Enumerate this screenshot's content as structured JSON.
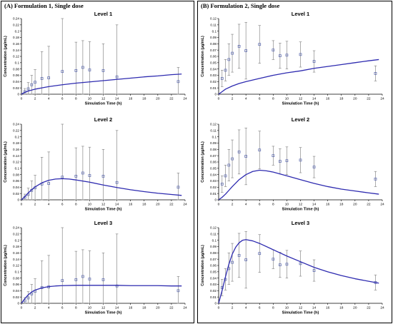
{
  "figure": {
    "panels": [
      {
        "label": "(A) Formulation 1, Single dose"
      },
      {
        "label": "(B) Formulation 2, Single dose"
      }
    ],
    "colors": {
      "curve": "#2e2bb0",
      "marker": "#5a68b0",
      "errorbar": "#8a8a8a",
      "axis": "#000000"
    }
  },
  "chart_data": [
    {
      "type": "scatter",
      "panel": "A",
      "title": "Level 1",
      "xlabel": "Simulation Time (h)",
      "ylabel": "Concentration (µg/mL)",
      "xlim": [
        0,
        24
      ],
      "ylim": [
        0,
        0.24
      ],
      "xticks": [
        "0",
        "2",
        "4",
        "6",
        "8",
        "10",
        "12",
        "14",
        "16",
        "18",
        "20",
        "22",
        "24"
      ],
      "yticks": [
        "0",
        "0.02",
        "0.04",
        "0.06",
        "0.08",
        "0.1",
        "0.12",
        "0.14",
        "0.16",
        "0.18",
        "0.2",
        "0.22",
        "0.24"
      ],
      "observed": {
        "x": [
          0.5,
          1,
          1.5,
          2,
          3,
          4,
          6,
          8,
          9,
          10,
          12,
          14,
          23
        ],
        "y": [
          0.008,
          0.017,
          0.03,
          0.038,
          0.05,
          0.052,
          0.072,
          0.075,
          0.085,
          0.077,
          0.075,
          0.055,
          0.04
        ],
        "err": [
          0.01,
          0.02,
          0.03,
          0.04,
          0.085,
          0.1,
          0.175,
          0.09,
          0.085,
          0.09,
          0.085,
          0.165,
          0.045
        ]
      },
      "simulated": {
        "x": [
          0,
          0.5,
          1,
          2,
          3,
          4,
          6,
          8,
          10,
          12,
          14,
          16,
          18,
          20,
          22,
          23.5
        ],
        "y": [
          0,
          0.006,
          0.01,
          0.016,
          0.02,
          0.024,
          0.03,
          0.035,
          0.039,
          0.043,
          0.047,
          0.051,
          0.055,
          0.058,
          0.062,
          0.064
        ]
      }
    },
    {
      "type": "scatter",
      "panel": "A",
      "title": "Level 2",
      "xlabel": "Simulation Time (h)",
      "ylabel": "Concentration (µg/mL)",
      "xlim": [
        0,
        24
      ],
      "ylim": [
        0,
        0.24
      ],
      "xticks": [
        "0",
        "2",
        "4",
        "6",
        "8",
        "10",
        "12",
        "14",
        "16",
        "18",
        "20",
        "22",
        "24"
      ],
      "yticks": [
        "0",
        "0.02",
        "0.04",
        "0.06",
        "0.08",
        "0.1",
        "0.12",
        "0.14",
        "0.16",
        "0.18",
        "0.2",
        "0.22",
        "0.24"
      ],
      "observed": {
        "x": [
          0.5,
          1,
          1.5,
          2,
          3,
          4,
          6,
          8,
          9,
          10,
          12,
          14,
          23
        ],
        "y": [
          0.008,
          0.017,
          0.03,
          0.038,
          0.05,
          0.052,
          0.072,
          0.075,
          0.085,
          0.077,
          0.075,
          0.055,
          0.04
        ],
        "err": [
          0.01,
          0.02,
          0.03,
          0.04,
          0.085,
          0.1,
          0.175,
          0.09,
          0.085,
          0.09,
          0.085,
          0.165,
          0.045
        ]
      },
      "simulated": {
        "x": [
          0,
          0.5,
          1,
          1.5,
          2,
          3,
          4,
          5,
          6,
          7,
          8,
          10,
          12,
          14,
          16,
          18,
          20,
          22,
          23.5
        ],
        "y": [
          0,
          0.01,
          0.022,
          0.032,
          0.041,
          0.054,
          0.062,
          0.066,
          0.067,
          0.066,
          0.063,
          0.056,
          0.047,
          0.039,
          0.032,
          0.026,
          0.021,
          0.017,
          0.014
        ]
      }
    },
    {
      "type": "scatter",
      "panel": "A",
      "title": "Level 3",
      "xlabel": "Simulation Time (h)",
      "ylabel": "Concentration (µg/mL)",
      "xlim": [
        0,
        24
      ],
      "ylim": [
        0,
        0.24
      ],
      "xticks": [
        "0",
        "2",
        "4",
        "6",
        "8",
        "10",
        "12",
        "14",
        "16",
        "18",
        "20",
        "22",
        "24"
      ],
      "yticks": [
        "0",
        "0.02",
        "0.04",
        "0.06",
        "0.08",
        "0.1",
        "0.12",
        "0.14",
        "0.16",
        "0.18",
        "0.2",
        "0.22",
        "0.24"
      ],
      "observed": {
        "x": [
          0.5,
          1,
          1.5,
          2,
          3,
          4,
          6,
          8,
          9,
          10,
          12,
          14,
          23
        ],
        "y": [
          0.008,
          0.017,
          0.03,
          0.038,
          0.05,
          0.052,
          0.072,
          0.075,
          0.085,
          0.077,
          0.075,
          0.055,
          0.04
        ],
        "err": [
          0.01,
          0.02,
          0.03,
          0.04,
          0.085,
          0.1,
          0.175,
          0.09,
          0.085,
          0.09,
          0.085,
          0.165,
          0.045
        ]
      },
      "simulated": {
        "x": [
          0,
          0.5,
          1,
          1.5,
          2,
          3,
          4,
          5,
          6,
          8,
          10,
          12,
          14,
          16,
          18,
          20,
          22,
          23.5
        ],
        "y": [
          0,
          0.015,
          0.027,
          0.036,
          0.042,
          0.049,
          0.053,
          0.055,
          0.056,
          0.057,
          0.057,
          0.057,
          0.057,
          0.056,
          0.056,
          0.056,
          0.055,
          0.055
        ]
      }
    },
    {
      "type": "scatter",
      "panel": "B",
      "title": "Level 1",
      "xlabel": "Simulation Time (h)",
      "ylabel": "Concentration (µg/mL)",
      "xlim": [
        0,
        24
      ],
      "ylim": [
        0,
        0.12
      ],
      "xticks": [
        "0",
        "2",
        "4",
        "6",
        "8",
        "10",
        "12",
        "14",
        "16",
        "18",
        "20",
        "22",
        "24"
      ],
      "yticks": [
        "0",
        "0.01",
        "0.02",
        "0.03",
        "0.04",
        "0.05",
        "0.06",
        "0.07",
        "0.08",
        "0.09",
        "0.1",
        "0.11",
        "0.12"
      ],
      "observed": {
        "x": [
          0.5,
          1,
          1.5,
          2,
          3,
          4,
          6,
          8,
          9,
          10,
          12,
          14,
          23
        ],
        "y": [
          0.025,
          0.038,
          0.055,
          0.065,
          0.076,
          0.069,
          0.079,
          0.07,
          0.061,
          0.062,
          0.063,
          0.052,
          0.033
        ],
        "err": [
          0.013,
          0.017,
          0.025,
          0.03,
          0.035,
          0.045,
          0.03,
          0.015,
          0.02,
          0.022,
          0.02,
          0.017,
          0.012
        ]
      },
      "simulated": {
        "x": [
          0,
          0.5,
          1,
          2,
          3,
          4,
          6,
          8,
          10,
          12,
          14,
          16,
          18,
          20,
          22,
          23.5
        ],
        "y": [
          0,
          0.004,
          0.008,
          0.013,
          0.017,
          0.02,
          0.025,
          0.03,
          0.034,
          0.037,
          0.041,
          0.044,
          0.047,
          0.05,
          0.053,
          0.055
        ]
      }
    },
    {
      "type": "scatter",
      "panel": "B",
      "title": "Level 2",
      "xlabel": "Simulation Time (h)",
      "ylabel": "Concentration (µg/mL)",
      "xlim": [
        0,
        24
      ],
      "ylim": [
        0,
        0.12
      ],
      "xticks": [
        "0",
        "2",
        "4",
        "6",
        "8",
        "10",
        "12",
        "14",
        "16",
        "18",
        "20",
        "22",
        "24"
      ],
      "yticks": [
        "0",
        "0.01",
        "0.02",
        "0.03",
        "0.04",
        "0.05",
        "0.06",
        "0.07",
        "0.08",
        "0.09",
        "0.1",
        "0.11",
        "0.12"
      ],
      "observed": {
        "x": [
          0.5,
          1,
          1.5,
          2,
          3,
          4,
          6,
          8,
          9,
          10,
          12,
          14,
          23
        ],
        "y": [
          0.025,
          0.038,
          0.055,
          0.065,
          0.076,
          0.069,
          0.079,
          0.07,
          0.061,
          0.062,
          0.063,
          0.052,
          0.033
        ],
        "err": [
          0.013,
          0.017,
          0.025,
          0.03,
          0.035,
          0.045,
          0.03,
          0.015,
          0.02,
          0.022,
          0.02,
          0.017,
          0.012
        ]
      },
      "simulated": {
        "x": [
          0,
          0.5,
          1,
          1.5,
          2,
          3,
          4,
          5,
          6,
          7,
          8,
          10,
          12,
          14,
          16,
          18,
          20,
          22,
          23.5
        ],
        "y": [
          0,
          0.004,
          0.009,
          0.015,
          0.021,
          0.032,
          0.04,
          0.045,
          0.047,
          0.046,
          0.044,
          0.038,
          0.032,
          0.026,
          0.021,
          0.017,
          0.014,
          0.011,
          0.009
        ]
      }
    },
    {
      "type": "scatter",
      "panel": "B",
      "title": "Level 3",
      "xlabel": "Simulation Time (h)",
      "ylabel": "Concentration (µg/mL)",
      "xlim": [
        0,
        24
      ],
      "ylim": [
        0,
        0.12
      ],
      "xticks": [
        "0",
        "2",
        "4",
        "6",
        "8",
        "10",
        "12",
        "14",
        "16",
        "18",
        "20",
        "22",
        "24"
      ],
      "yticks": [
        "0",
        "0.01",
        "0.02",
        "0.03",
        "0.04",
        "0.05",
        "0.06",
        "0.07",
        "0.08",
        "0.09",
        "0.1",
        "0.11",
        "0.12"
      ],
      "observed": {
        "x": [
          0.5,
          1,
          1.5,
          2,
          3,
          4,
          6,
          8,
          9,
          10,
          12,
          14,
          23
        ],
        "y": [
          0.025,
          0.038,
          0.055,
          0.065,
          0.076,
          0.069,
          0.079,
          0.07,
          0.061,
          0.062,
          0.063,
          0.052,
          0.033
        ],
        "err": [
          0.013,
          0.017,
          0.025,
          0.03,
          0.035,
          0.045,
          0.03,
          0.015,
          0.02,
          0.022,
          0.02,
          0.017,
          0.012
        ]
      },
      "simulated": {
        "x": [
          0,
          0.5,
          1,
          1.5,
          2,
          2.5,
          3,
          3.5,
          4,
          5,
          6,
          8,
          10,
          12,
          14,
          16,
          18,
          20,
          22,
          23.5
        ],
        "y": [
          0,
          0.02,
          0.042,
          0.062,
          0.078,
          0.089,
          0.096,
          0.1,
          0.101,
          0.099,
          0.095,
          0.085,
          0.075,
          0.066,
          0.057,
          0.05,
          0.044,
          0.039,
          0.035,
          0.032
        ]
      }
    }
  ]
}
